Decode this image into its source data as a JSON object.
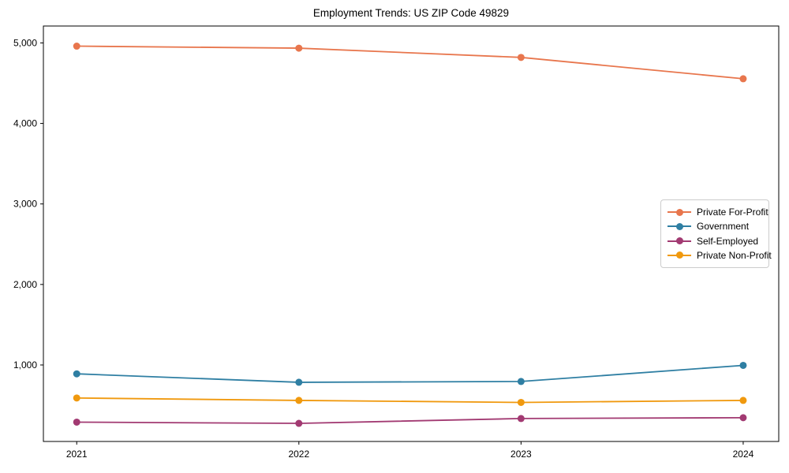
{
  "figure": {
    "background": "#ffffff",
    "axis_color": "#000000",
    "tick_label_color": "#000000"
  },
  "chart_data": {
    "type": "line",
    "title": "Employment Trends: US ZIP Code 49829",
    "xlabel": "",
    "ylabel": "",
    "x": [
      2021,
      2022,
      2023,
      2024
    ],
    "x_tick_labels": [
      "2021",
      "2022",
      "2023",
      "2024"
    ],
    "y_ticks": [
      1000,
      2000,
      3000,
      4000,
      5000
    ],
    "y_tick_labels": [
      "1,000",
      "2,000",
      "3,000",
      "4,000",
      "5,000"
    ],
    "xlim": [
      2020.85,
      2024.16
    ],
    "ylim": [
      50,
      5210
    ],
    "grid": false,
    "legend": {
      "position": "right-center",
      "border_color": "#cccccc",
      "background": "#ffffff"
    },
    "series": [
      {
        "name": "Private For-Profit",
        "color": "#e8764d",
        "values": [
          4960,
          4935,
          4820,
          4555
        ]
      },
      {
        "name": "Government",
        "color": "#2f7fa3",
        "values": [
          890,
          785,
          795,
          995
        ]
      },
      {
        "name": "Self-Employed",
        "color": "#a23a72",
        "values": [
          290,
          275,
          335,
          345
        ]
      },
      {
        "name": "Private Non-Profit",
        "color": "#f0990e",
        "values": [
          590,
          560,
          535,
          560
        ]
      }
    ]
  }
}
